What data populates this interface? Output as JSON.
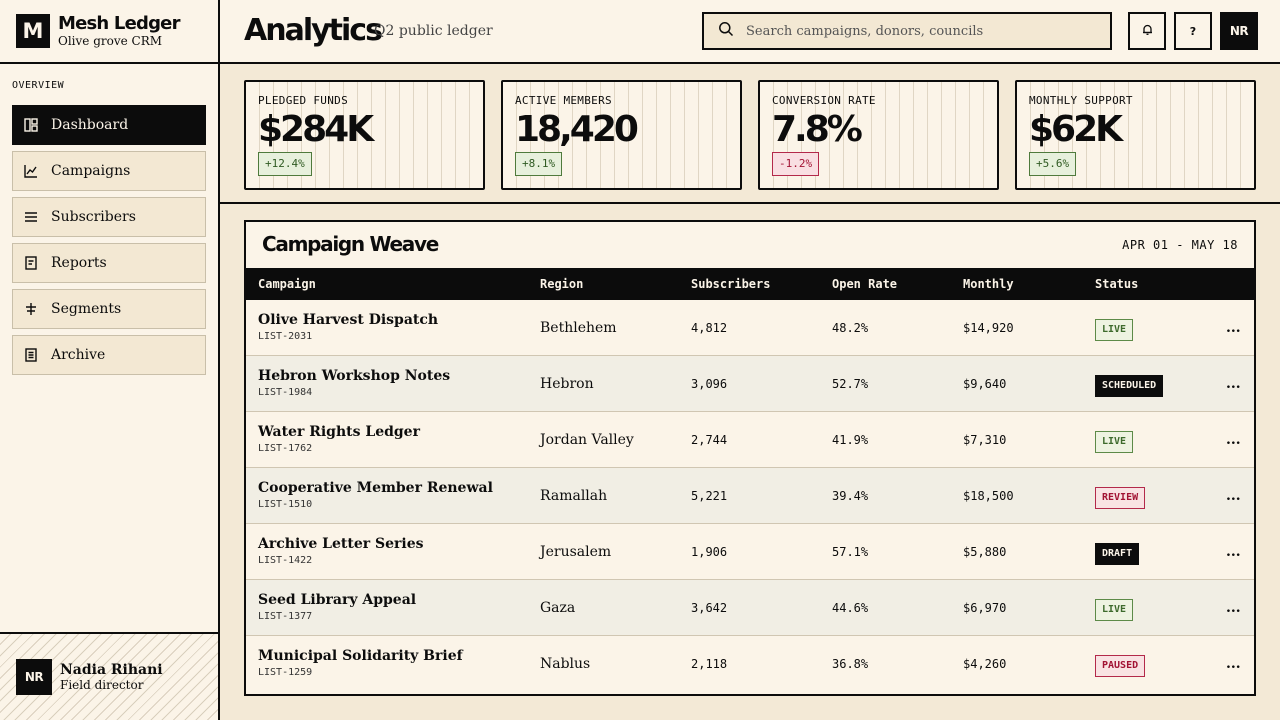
{
  "brand": {
    "mark": "M",
    "title": "Mesh Ledger",
    "subtitle": "Olive grove CRM"
  },
  "sidebar": {
    "heading": "OVERVIEW",
    "items": [
      {
        "label": "Dashboard",
        "icon": "dashboard-icon",
        "active": true
      },
      {
        "label": "Campaigns",
        "icon": "chart-line-icon"
      },
      {
        "label": "Subscribers",
        "icon": "list-icon"
      },
      {
        "label": "Reports",
        "icon": "document-icon"
      },
      {
        "label": "Segments",
        "icon": "sliders-icon"
      },
      {
        "label": "Archive",
        "icon": "archive-icon"
      }
    ]
  },
  "user": {
    "initials": "NR",
    "name": "Nadia Rihani",
    "role": "Field director"
  },
  "header": {
    "title": "Analytics",
    "subtitle": "Q2 public ledger",
    "search_placeholder": "Search campaigns, donors, councils",
    "help_label": "?",
    "avatar_initials": "NR"
  },
  "kpis": [
    {
      "label": "PLEDGED FUNDS",
      "value": "$284K",
      "delta": "+12.4%",
      "trend": "up"
    },
    {
      "label": "ACTIVE MEMBERS",
      "value": "18,420",
      "delta": "+8.1%",
      "trend": "up"
    },
    {
      "label": "CONVERSION RATE",
      "value": "7.8%",
      "delta": "-1.2%",
      "trend": "down"
    },
    {
      "label": "MONTHLY SUPPORT",
      "value": "$62K",
      "delta": "+5.6%",
      "trend": "up"
    }
  ],
  "table": {
    "title": "Campaign Weave",
    "date_range": "APR 01 - MAY 18",
    "columns": [
      "Campaign",
      "Region",
      "Subscribers",
      "Open Rate",
      "Monthly",
      "Status"
    ],
    "rows": [
      {
        "name": "Olive Harvest Dispatch",
        "id": "LIST-2031",
        "region": "Bethlehem",
        "subscribers": "4,812",
        "open_rate": "48.2%",
        "monthly": "$14,920",
        "status": "LIVE",
        "status_style": "live"
      },
      {
        "name": "Hebron Workshop Notes",
        "id": "LIST-1984",
        "region": "Hebron",
        "subscribers": "3,096",
        "open_rate": "52.7%",
        "monthly": "$9,640",
        "status": "SCHEDULED",
        "status_style": "dark"
      },
      {
        "name": "Water Rights Ledger",
        "id": "LIST-1762",
        "region": "Jordan Valley",
        "subscribers": "2,744",
        "open_rate": "41.9%",
        "monthly": "$7,310",
        "status": "LIVE",
        "status_style": "live"
      },
      {
        "name": "Cooperative Member Renewal",
        "id": "LIST-1510",
        "region": "Ramallah",
        "subscribers": "5,221",
        "open_rate": "39.4%",
        "monthly": "$18,500",
        "status": "REVIEW",
        "status_style": "warn"
      },
      {
        "name": "Archive Letter Series",
        "id": "LIST-1422",
        "region": "Jerusalem",
        "subscribers": "1,906",
        "open_rate": "57.1%",
        "monthly": "$5,880",
        "status": "DRAFT",
        "status_style": "dark"
      },
      {
        "name": "Seed Library Appeal",
        "id": "LIST-1377",
        "region": "Gaza",
        "subscribers": "3,642",
        "open_rate": "44.6%",
        "monthly": "$6,970",
        "status": "LIVE",
        "status_style": "live"
      },
      {
        "name": "Municipal Solidarity Brief",
        "id": "LIST-1259",
        "region": "Nablus",
        "subscribers": "2,118",
        "open_rate": "36.8%",
        "monthly": "$4,260",
        "status": "PAUSED",
        "status_style": "warn"
      }
    ],
    "row_action_label": "..."
  },
  "colors": {
    "ink": "#0c0c0c",
    "paper": "#fbf4e8",
    "positive": "#2f5a22",
    "negative": "#a21233"
  }
}
